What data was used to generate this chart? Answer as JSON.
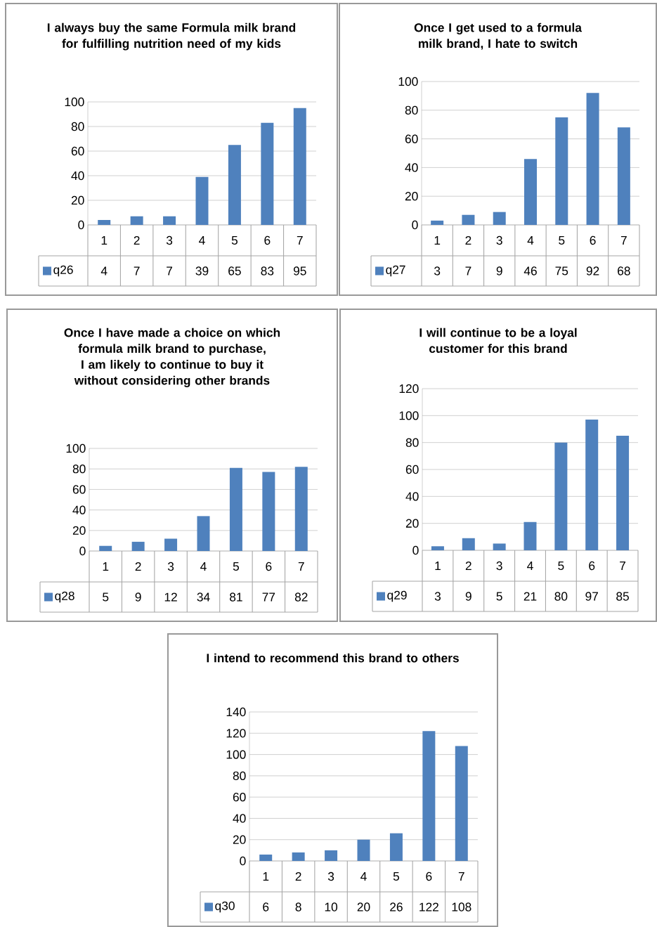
{
  "chart_data": [
    {
      "type": "bar",
      "title": "I always buy the same Formula milk brand for fulfilling nutrition need of my kids",
      "categories": [
        "1",
        "2",
        "3",
        "4",
        "5",
        "6",
        "7"
      ],
      "series": [
        {
          "name": "q26",
          "color": "#4f81bd",
          "values": [
            4,
            7,
            7,
            39,
            65,
            83,
            95
          ]
        }
      ],
      "ylim": [
        0,
        100
      ],
      "yticks": [
        0,
        20,
        40,
        60,
        80,
        100
      ],
      "grid": "y",
      "data_labels": true,
      "legend": "bottom"
    },
    {
      "type": "bar",
      "title": "Once I get used to a formula milk brand, I hate to switch",
      "categories": [
        "1",
        "2",
        "3",
        "4",
        "5",
        "6",
        "7"
      ],
      "series": [
        {
          "name": "q27",
          "color": "#4f81bd",
          "values": [
            3,
            7,
            9,
            46,
            75,
            92,
            68
          ]
        }
      ],
      "ylim": [
        0,
        100
      ],
      "yticks": [
        0,
        20,
        40,
        60,
        80,
        100
      ],
      "grid": "y",
      "data_labels": true,
      "legend": "bottom"
    },
    {
      "type": "bar",
      "title": "Once I have made a choice on which formula milk brand to purchase, I am likely to continue to buy it without considering other brands",
      "categories": [
        "1",
        "2",
        "3",
        "4",
        "5",
        "6",
        "7"
      ],
      "series": [
        {
          "name": "q28",
          "color": "#4f81bd",
          "values": [
            5,
            9,
            12,
            34,
            81,
            77,
            82
          ]
        }
      ],
      "ylim": [
        0,
        100
      ],
      "yticks": [
        0,
        20,
        40,
        60,
        80,
        100
      ],
      "grid": "y",
      "data_labels": true,
      "legend": "bottom"
    },
    {
      "type": "bar",
      "title": "I will continue to be a loyal customer for this brand",
      "categories": [
        "1",
        "2",
        "3",
        "4",
        "5",
        "6",
        "7"
      ],
      "series": [
        {
          "name": "q29",
          "color": "#4f81bd",
          "values": [
            3,
            9,
            5,
            21,
            80,
            97,
            85
          ]
        }
      ],
      "ylim": [
        0,
        120
      ],
      "yticks": [
        0,
        20,
        40,
        60,
        80,
        100,
        120
      ],
      "grid": "y",
      "data_labels": true,
      "legend": "bottom"
    },
    {
      "type": "bar",
      "title": "I intend to recommend this brand to others",
      "categories": [
        "1",
        "2",
        "3",
        "4",
        "5",
        "6",
        "7"
      ],
      "series": [
        {
          "name": "q30",
          "color": "#4f81bd",
          "values": [
            6,
            8,
            10,
            20,
            26,
            122,
            108
          ]
        }
      ],
      "ylim": [
        0,
        140
      ],
      "yticks": [
        0,
        20,
        40,
        60,
        80,
        100,
        120,
        140
      ],
      "grid": "y",
      "data_labels": true,
      "legend": "bottom"
    }
  ]
}
